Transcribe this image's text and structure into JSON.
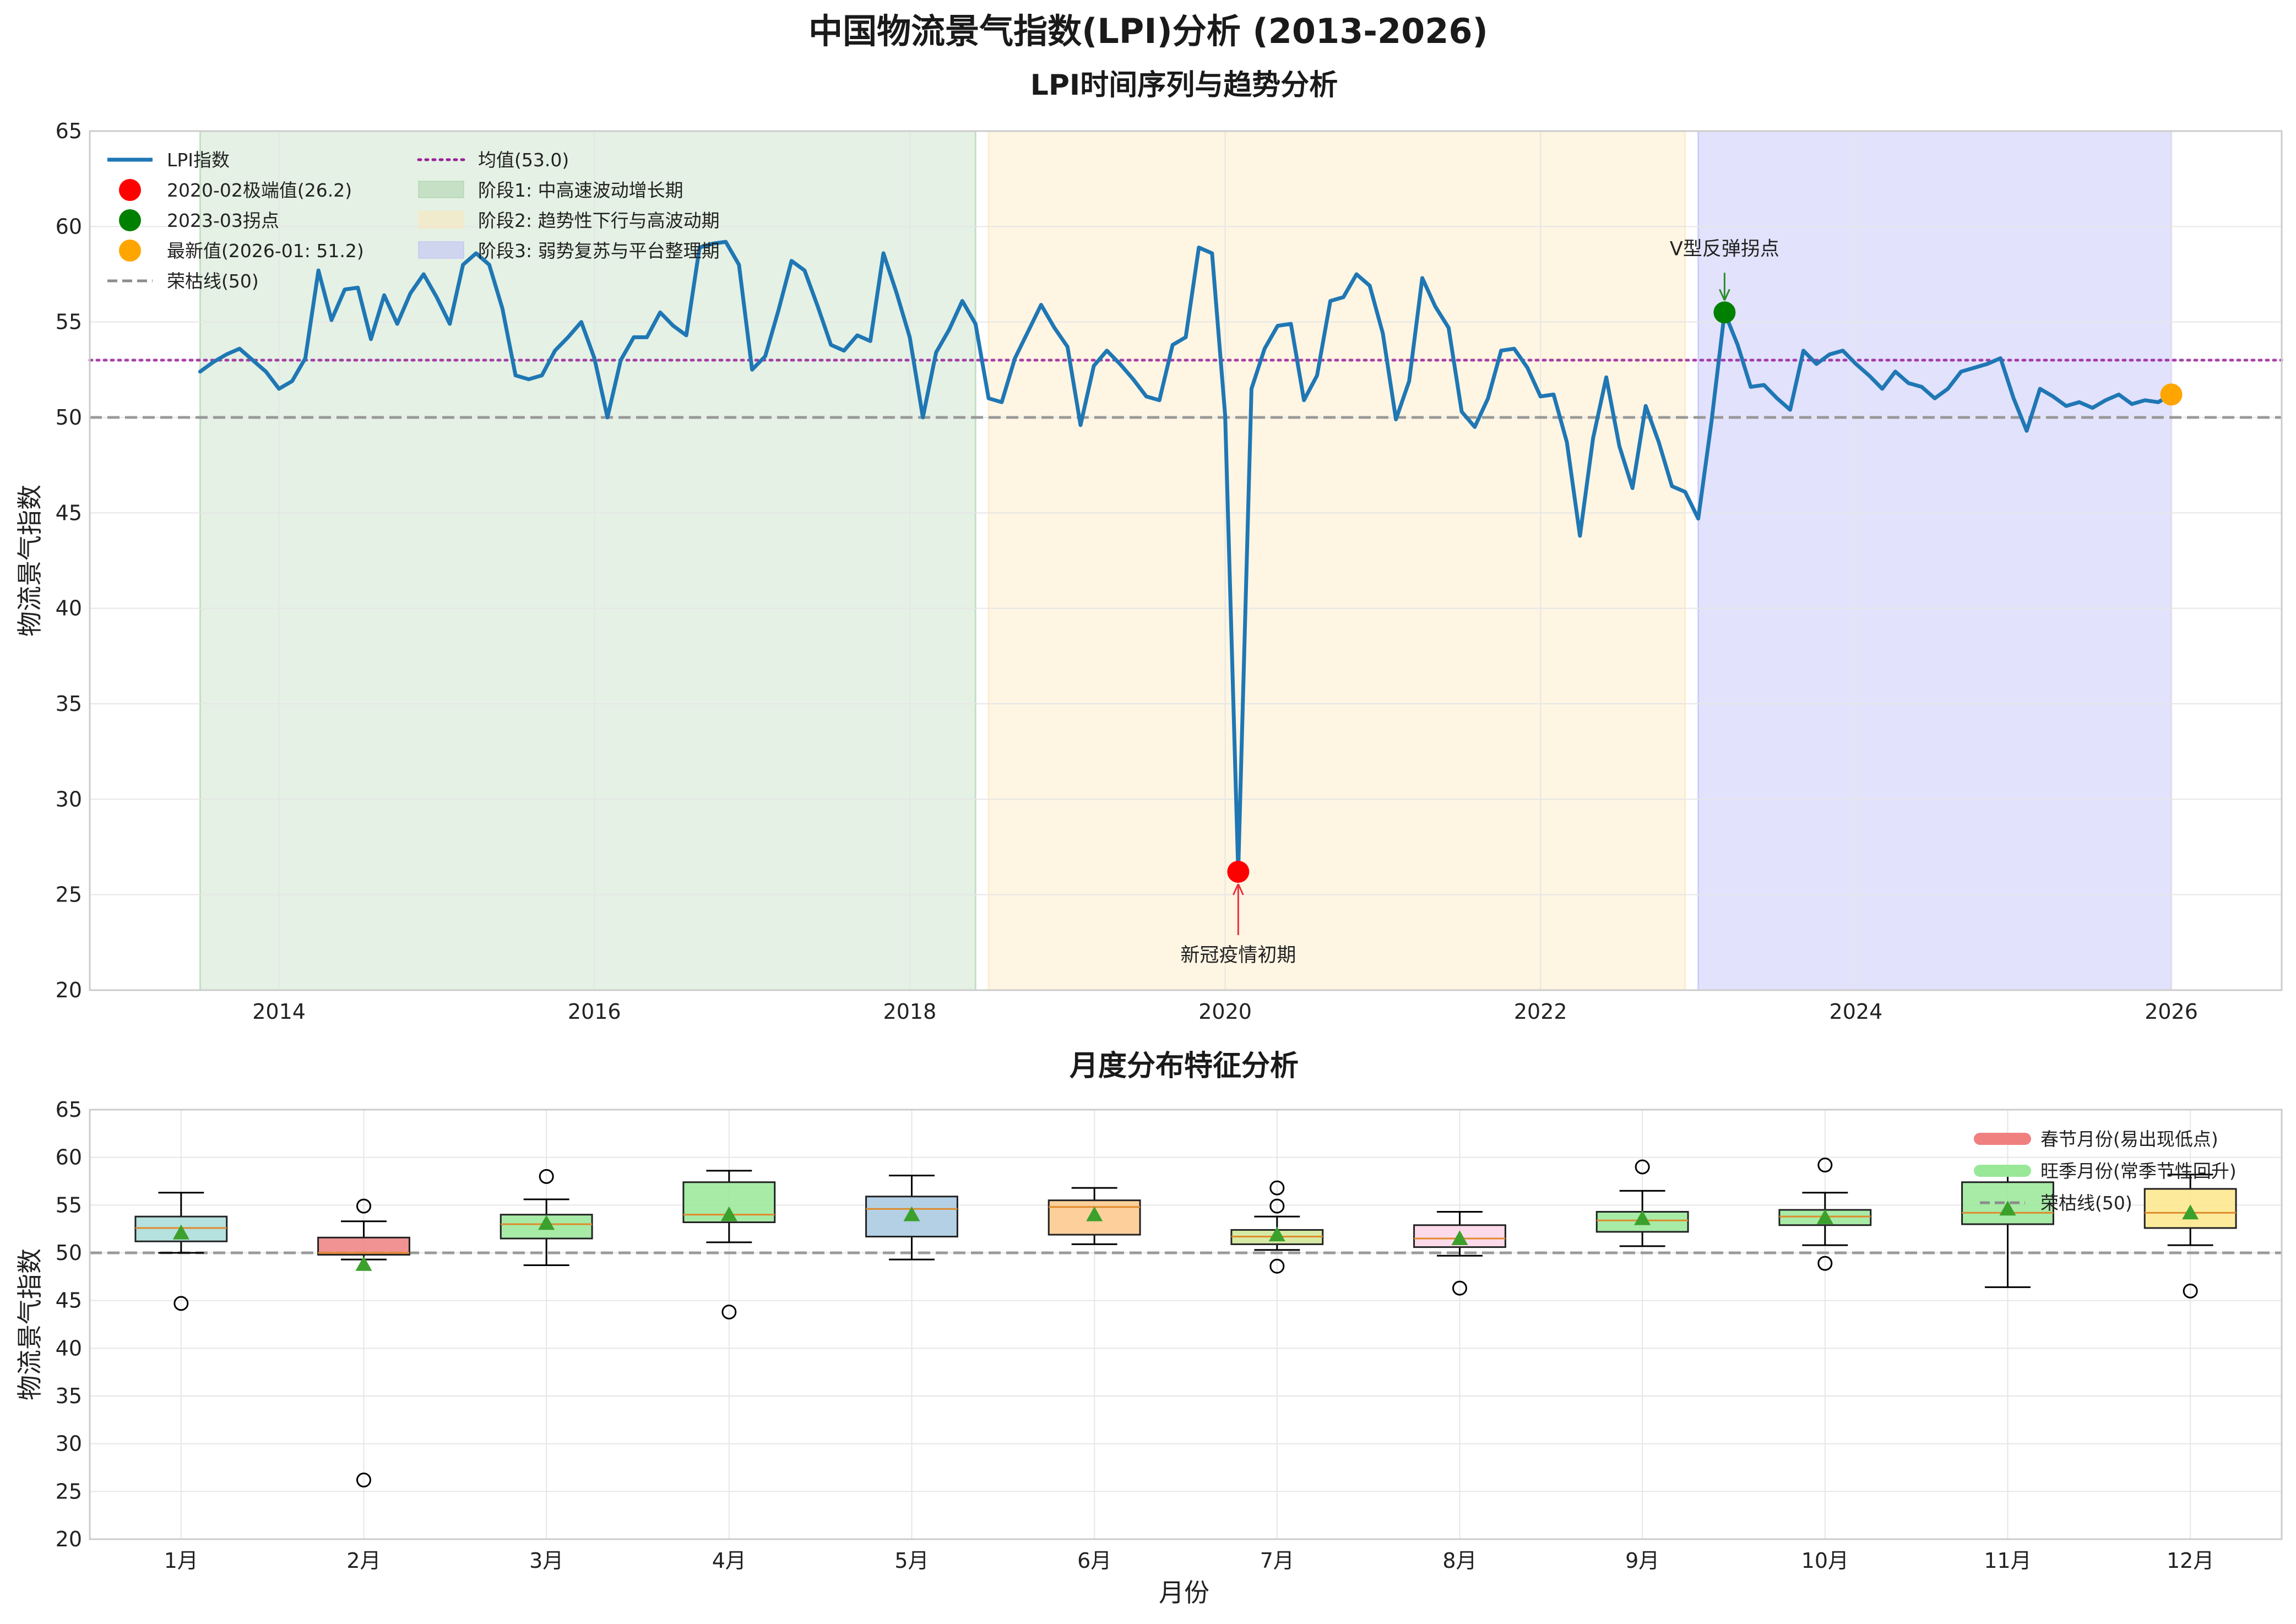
{
  "figure": {
    "title": "中国物流景气指数(LPI)分析 (2013-2026)"
  },
  "chart_data": [
    {
      "type": "line",
      "title": "LPI时间序列与趋势分析",
      "ylabel": "物流景气指数",
      "xlabel": "",
      "ylim": [
        20,
        65
      ],
      "xlim": [
        2012.8,
        2026.7
      ],
      "x_ticks": [
        "2014",
        "2016",
        "2018",
        "2020",
        "2022",
        "2024",
        "2026"
      ],
      "y_ticks": [
        "20",
        "25",
        "30",
        "35",
        "40",
        "45",
        "50",
        "55",
        "60",
        "65"
      ],
      "grid": true,
      "legend_position": "top-left",
      "series": [
        {
          "name": "LPI指数",
          "color": "#1f77b4",
          "x": [
            2013.5,
            2013.583,
            2013.667,
            2013.75,
            2013.833,
            2013.917,
            2014.0,
            2014.083,
            2014.167,
            2014.25,
            2014.333,
            2014.417,
            2014.5,
            2014.583,
            2014.667,
            2014.75,
            2014.833,
            2014.917,
            2015.0,
            2015.083,
            2015.167,
            2015.25,
            2015.333,
            2015.417,
            2015.5,
            2015.583,
            2015.667,
            2015.75,
            2015.833,
            2015.917,
            2016.0,
            2016.083,
            2016.167,
            2016.25,
            2016.333,
            2016.417,
            2016.5,
            2016.583,
            2016.667,
            2016.75,
            2016.833,
            2016.917,
            2017.0,
            2017.083,
            2017.167,
            2017.25,
            2017.333,
            2017.417,
            2017.5,
            2017.583,
            2017.667,
            2017.75,
            2017.833,
            2017.917,
            2018.0,
            2018.083,
            2018.167,
            2018.25,
            2018.333,
            2018.417,
            2018.5,
            2018.583,
            2018.667,
            2018.75,
            2018.833,
            2018.917,
            2019.0,
            2019.083,
            2019.167,
            2019.25,
            2019.333,
            2019.417,
            2019.5,
            2019.583,
            2019.667,
            2019.75,
            2019.833,
            2019.917,
            2020.0,
            2020.083,
            2020.167,
            2020.25,
            2020.333,
            2020.417,
            2020.5,
            2020.583,
            2020.667,
            2020.75,
            2020.833,
            2020.917,
            2021.0,
            2021.083,
            2021.167,
            2021.25,
            2021.333,
            2021.417,
            2021.5,
            2021.583,
            2021.667,
            2021.75,
            2021.833,
            2021.917,
            2022.0,
            2022.083,
            2022.167,
            2022.25,
            2022.333,
            2022.417,
            2022.5,
            2022.583,
            2022.667,
            2022.75,
            2022.833,
            2022.917,
            2023.0,
            2023.083,
            2023.167,
            2023.25,
            2023.333,
            2023.417,
            2023.5,
            2023.583,
            2023.667,
            2023.75,
            2023.833,
            2023.917,
            2024.0,
            2024.083,
            2024.167,
            2024.25,
            2024.333,
            2024.417,
            2024.5,
            2024.583,
            2024.667,
            2024.75,
            2024.833,
            2024.917,
            2025.0,
            2025.083,
            2025.167,
            2025.25,
            2025.333,
            2025.417,
            2025.5,
            2025.583,
            2025.667,
            2025.75,
            2025.833,
            2025.917,
            2026.0
          ],
          "y": [
            52.4,
            52.9,
            53.3,
            53.6,
            53.0,
            52.4,
            51.5,
            51.9,
            53.1,
            57.7,
            55.1,
            56.7,
            56.8,
            54.1,
            56.4,
            54.9,
            56.5,
            57.5,
            56.3,
            54.9,
            58.0,
            58.6,
            58.0,
            55.7,
            52.2,
            52.0,
            52.2,
            53.5,
            54.2,
            55.0,
            53.1,
            50.0,
            53.0,
            54.2,
            54.2,
            55.5,
            54.8,
            54.3,
            58.9,
            59.1,
            59.2,
            58.0,
            52.5,
            53.2,
            55.6,
            58.2,
            57.7,
            55.8,
            53.8,
            53.5,
            54.3,
            54.0,
            58.6,
            56.5,
            54.2,
            50.0,
            53.4,
            54.6,
            56.1,
            54.9,
            51.0,
            50.8,
            53.1,
            54.5,
            55.9,
            54.7,
            53.7,
            49.6,
            52.7,
            53.5,
            52.8,
            52.0,
            51.1,
            50.9,
            53.8,
            54.2,
            58.9,
            58.6,
            50.1,
            26.2,
            51.5,
            53.6,
            54.8,
            54.9,
            50.9,
            52.2,
            56.1,
            56.3,
            57.5,
            56.9,
            54.4,
            49.9,
            51.9,
            57.3,
            55.8,
            54.7,
            50.3,
            49.5,
            51.0,
            53.5,
            53.6,
            52.6,
            51.1,
            51.2,
            48.7,
            43.8,
            48.9,
            52.1,
            48.5,
            46.3,
            50.6,
            48.7,
            46.4,
            46.1,
            44.7,
            49.7,
            55.5,
            53.8,
            51.6,
            51.7,
            51.0,
            50.4,
            53.5,
            52.8,
            53.3,
            53.5,
            52.8,
            52.2,
            51.5,
            52.4,
            51.8,
            51.6,
            51.0,
            51.5,
            52.4,
            52.6,
            52.8,
            53.1,
            51.0,
            49.3,
            51.5,
            51.1,
            50.6,
            50.8,
            50.5,
            50.9,
            51.2,
            50.7,
            50.9,
            50.8,
            51.2
          ]
        }
      ],
      "reference_lines": [
        {
          "name": "均值(53.0)",
          "y": 53.0,
          "color": "#9b1f9b",
          "style": "dotted"
        },
        {
          "name": "荣枯线(50)",
          "y": 50,
          "color": "#8c8c8c",
          "style": "dashed"
        }
      ],
      "phases": [
        {
          "name": "阶段1: 中高速波动增长期",
          "start": 2013.5,
          "end": 2018.417,
          "color": "#a6cfa6"
        },
        {
          "name": "阶段2: 趋势性下行与高波动期",
          "start": 2018.5,
          "end": 2022.917,
          "color": "#fde5b8"
        },
        {
          "name": "阶段3: 弱势复苏与平台整理期",
          "start": 2023.0,
          "end": 2026.0,
          "color": "#b9b9f8"
        }
      ],
      "highlights": [
        {
          "name": "2020-02极端值(26.2)",
          "x": 2020.083,
          "y": 26.2,
          "color": "#ff0000"
        },
        {
          "name": "2023-03拐点",
          "x": 2023.167,
          "y": 55.5,
          "color": "#008000"
        },
        {
          "name": "最新值(2026-01: 51.2)",
          "x": 2026.0,
          "y": 51.2,
          "color": "#ffa500"
        }
      ],
      "annotations": [
        {
          "text": "新冠疫情初期",
          "x": 2020.083,
          "y": 26.2,
          "text_x": 2020.083,
          "text_y": 21.5,
          "color": "#e8323c"
        },
        {
          "text": "V型反弹拐点",
          "x": 2023.167,
          "y": 55.5,
          "text_x": 2023.167,
          "text_y": 58.5,
          "color": "#2e8b2e"
        }
      ],
      "legend_col1": [
        "LPI指数",
        "2020-02极端值(26.2)",
        "2023-03拐点",
        "最新值(2026-01: 51.2)",
        "荣枯线(50)"
      ],
      "legend_col2": [
        "均值(53.0)",
        "阶段1: 中高速波动增长期",
        "阶段2: 趋势性下行与高波动期",
        "阶段3: 弱势复苏与平台整理期"
      ]
    },
    {
      "type": "box",
      "title": "月度分布特征分析",
      "ylabel": "物流景气指数",
      "xlabel": "月份",
      "ylim": [
        20,
        65
      ],
      "y_ticks": [
        "20",
        "25",
        "30",
        "35",
        "40",
        "45",
        "50",
        "55",
        "60",
        "65"
      ],
      "categories": [
        "1月",
        "2月",
        "3月",
        "4月",
        "5月",
        "6月",
        "7月",
        "8月",
        "9月",
        "10月",
        "11月",
        "12月"
      ],
      "grid": true,
      "legend_position": "top-right",
      "boxes": [
        {
          "whisker_low": 50.0,
          "q1": 51.2,
          "median": 52.6,
          "q3": 53.8,
          "whisker_high": 56.3,
          "mean": 52.1,
          "fliers": [
            44.7
          ],
          "color": "#a8dcd9"
        },
        {
          "whisker_low": 49.3,
          "q1": 49.8,
          "median": 50.0,
          "q3": 51.6,
          "whisker_high": 53.3,
          "mean": 48.8,
          "fliers": [
            54.9,
            26.2
          ],
          "color": "#f08080"
        },
        {
          "whisker_low": 48.7,
          "q1": 51.5,
          "median": 53.0,
          "q3": 54.0,
          "whisker_high": 55.6,
          "mean": 53.1,
          "fliers": [
            58.0
          ],
          "color": "#98e898"
        },
        {
          "whisker_low": 51.1,
          "q1": 53.2,
          "median": 54.0,
          "q3": 57.4,
          "whisker_high": 58.6,
          "mean": 54.0,
          "fliers": [
            43.8
          ],
          "color": "#98e898"
        },
        {
          "whisker_low": 49.3,
          "q1": 51.7,
          "median": 54.6,
          "q3": 55.9,
          "whisker_high": 58.1,
          "mean": 54.0,
          "fliers": [],
          "color": "#a6c8e0"
        },
        {
          "whisker_low": 50.9,
          "q1": 51.9,
          "median": 54.8,
          "q3": 55.5,
          "whisker_high": 56.8,
          "mean": 54.0,
          "fliers": [],
          "color": "#fdc88a"
        },
        {
          "whisker_low": 50.3,
          "q1": 50.9,
          "median": 51.7,
          "q3": 52.4,
          "whisker_high": 53.8,
          "mean": 51.9,
          "fliers": [
            56.8,
            54.9,
            48.6
          ],
          "color": "#cfe594"
        },
        {
          "whisker_low": 49.7,
          "q1": 50.6,
          "median": 51.5,
          "q3": 52.9,
          "whisker_high": 54.3,
          "mean": 51.5,
          "fliers": [
            46.3
          ],
          "color": "#fbd4e6"
        },
        {
          "whisker_low": 50.7,
          "q1": 52.2,
          "median": 53.4,
          "q3": 54.3,
          "whisker_high": 56.5,
          "mean": 53.6,
          "fliers": [
            59.0
          ],
          "color": "#98e898"
        },
        {
          "whisker_low": 50.8,
          "q1": 52.9,
          "median": 53.8,
          "q3": 54.5,
          "whisker_high": 56.3,
          "mean": 53.7,
          "fliers": [
            59.2,
            48.9
          ],
          "color": "#98e898"
        },
        {
          "whisker_low": 46.4,
          "q1": 53.0,
          "median": 54.2,
          "q3": 57.4,
          "whisker_high": 58.6,
          "mean": 54.6,
          "fliers": [],
          "color": "#98e898"
        },
        {
          "whisker_low": 50.8,
          "q1": 52.6,
          "median": 54.2,
          "q3": 56.7,
          "whisker_high": 58.2,
          "mean": 54.2,
          "fliers": [
            46.0
          ],
          "color": "#fde78a"
        }
      ],
      "reference_lines": [
        {
          "name": "荣枯线(50)",
          "y": 50,
          "color": "#8c8c8c",
          "style": "dashed"
        }
      ],
      "legend": [
        {
          "label": "春节月份(易出现低点)",
          "color": "#f08080",
          "kind": "bar"
        },
        {
          "label": "旺季月份(常季节性回升)",
          "color": "#98e898",
          "kind": "bar"
        },
        {
          "label": "荣枯线(50)",
          "color": "#8c8c8c",
          "kind": "dashed"
        }
      ]
    }
  ]
}
